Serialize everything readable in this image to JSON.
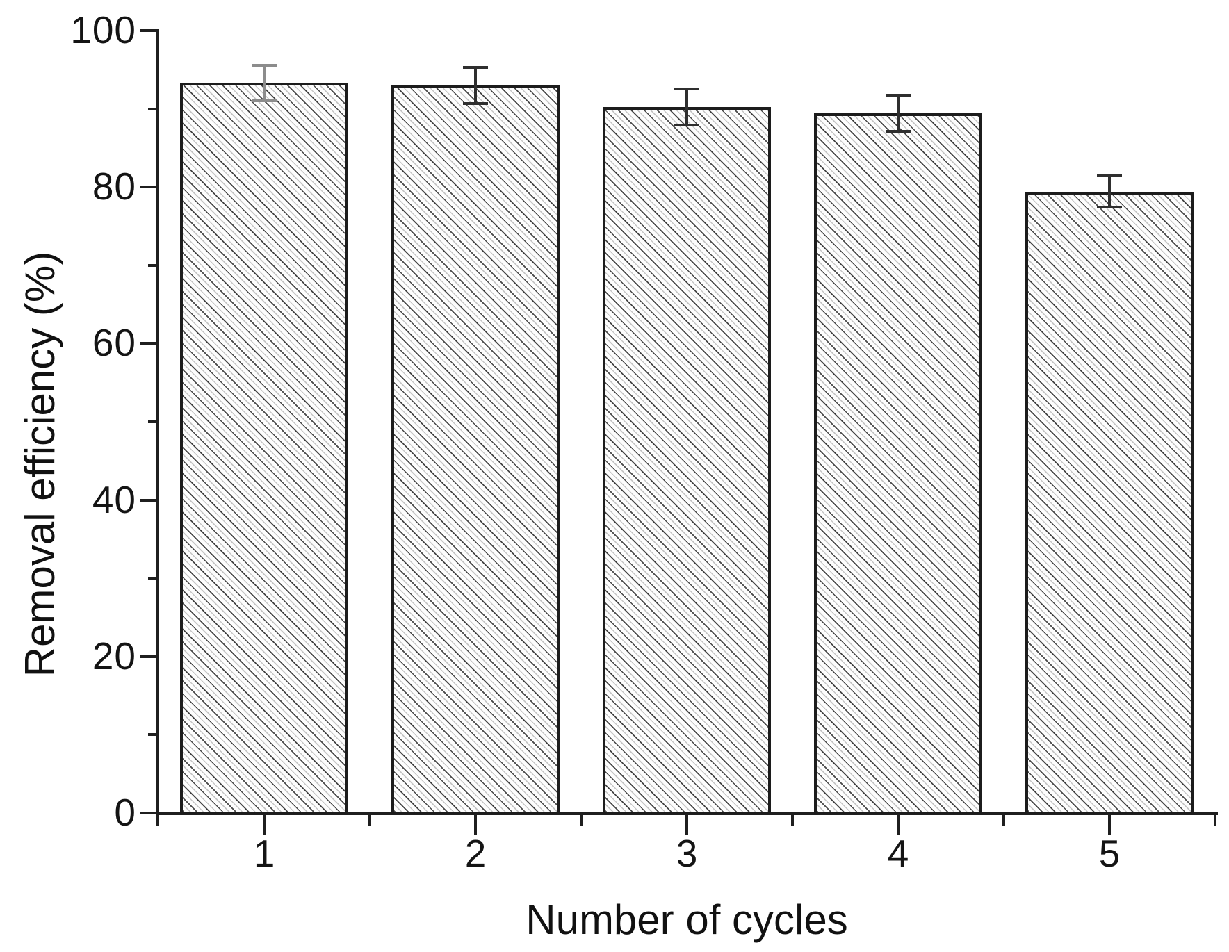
{
  "figure": {
    "background": "#ffffff",
    "axis_color": "#1f1f1f",
    "text_color": "#161616"
  },
  "chart_data": {
    "type": "bar",
    "title": "",
    "xlabel": "Number of cycles",
    "ylabel": "Removal efficiency (%)",
    "categories": [
      "1",
      "2",
      "3",
      "4",
      "5"
    ],
    "values": [
      93.3,
      93.0,
      90.2,
      89.4,
      79.4
    ],
    "errors": [
      2.3,
      2.3,
      2.3,
      2.3,
      2.0
    ],
    "ylim": [
      0,
      100
    ],
    "yticks_major": [
      0,
      20,
      40,
      60,
      80,
      100
    ],
    "yticks_minor": [
      10,
      30,
      50,
      70,
      90
    ],
    "grid": "off",
    "legend": "none",
    "bar_fill": "diagonal-hatch",
    "bar_edge_color": "#1c1c1c",
    "error_bar_colors": [
      "#8c8c8c",
      "#2f2f2f",
      "#2f2f2f",
      "#2f2f2f",
      "#2f2f2f"
    ]
  }
}
